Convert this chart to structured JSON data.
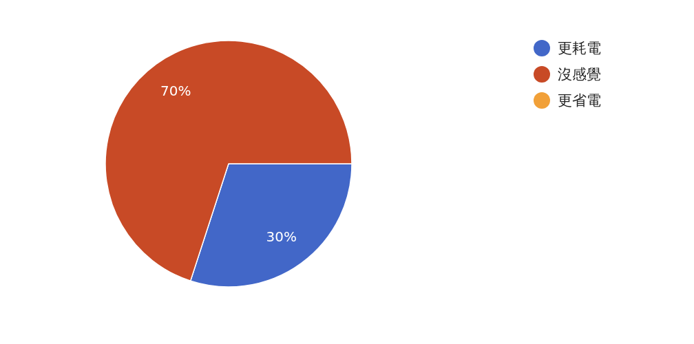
{
  "chart_data": {
    "type": "pie",
    "categories": [
      "更耗電",
      "沒感覺",
      "更省電"
    ],
    "values": [
      30,
      70,
      0
    ],
    "colors": [
      "#4267c8",
      "#c84a26",
      "#f1a038"
    ],
    "value_labels": [
      "30%",
      "70%",
      null
    ],
    "legend": "top right"
  }
}
